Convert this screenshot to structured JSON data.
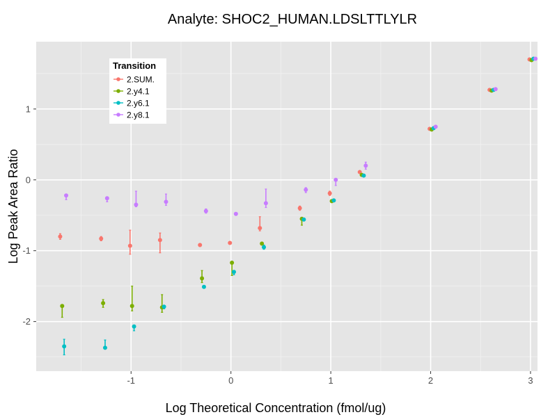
{
  "chart_data": {
    "type": "scatter",
    "title": "Analyte: SHOC2_HUMAN.LDSLTTLYLR",
    "xlabel": "Log Theoretical Concentration (fmol/ug)",
    "ylabel": "Log Peak Area Ratio",
    "xlim": [
      -1.95,
      3.07
    ],
    "ylim": [
      -2.7,
      1.95
    ],
    "x_ticks": [
      -1,
      0,
      1,
      2,
      3
    ],
    "x_tick_labels": [
      "-1",
      "0",
      "1",
      "2",
      "3"
    ],
    "y_ticks": [
      -2,
      -1,
      0,
      1
    ],
    "y_tick_labels": [
      "-2",
      "-1",
      "0",
      "1"
    ],
    "legend": {
      "title": "Transition",
      "position": "top-left"
    },
    "series": [
      {
        "name": "2.SUM.",
        "color": "#F8766D",
        "points": [
          {
            "x": -1.71,
            "y": -0.8,
            "lo": -0.84,
            "hi": -0.76
          },
          {
            "x": -1.3,
            "y": -0.83,
            "lo": -0.86,
            "hi": -0.8
          },
          {
            "x": -1.01,
            "y": -0.93,
            "lo": -1.05,
            "hi": -0.71
          },
          {
            "x": -0.71,
            "y": -0.85,
            "lo": -1.03,
            "hi": -0.75
          },
          {
            "x": -0.31,
            "y": -0.92,
            "lo": -0.94,
            "hi": -0.9
          },
          {
            "x": -0.01,
            "y": -0.89,
            "lo": -0.89,
            "hi": -0.89
          },
          {
            "x": 0.29,
            "y": -0.68,
            "lo": -0.72,
            "hi": -0.52
          },
          {
            "x": 0.69,
            "y": -0.4,
            "lo": -0.43,
            "hi": -0.37
          },
          {
            "x": 0.99,
            "y": -0.19,
            "lo": -0.22,
            "hi": -0.16
          },
          {
            "x": 1.29,
            "y": 0.11,
            "lo": 0.1,
            "hi": 0.12
          },
          {
            "x": 1.99,
            "y": 0.72,
            "lo": 0.72,
            "hi": 0.72
          },
          {
            "x": 2.59,
            "y": 1.27,
            "lo": 1.27,
            "hi": 1.27
          },
          {
            "x": 2.99,
            "y": 1.7,
            "lo": 1.7,
            "hi": 1.7
          }
        ]
      },
      {
        "name": "2.y4.1",
        "color": "#7CAE00",
        "points": [
          {
            "x": -1.69,
            "y": -1.78,
            "lo": -1.94,
            "hi": -1.77
          },
          {
            "x": -1.28,
            "y": -1.74,
            "lo": -1.8,
            "hi": -1.69
          },
          {
            "x": -0.99,
            "y": -1.78,
            "lo": -1.85,
            "hi": -1.5
          },
          {
            "x": -0.69,
            "y": -1.8,
            "lo": -1.87,
            "hi": -1.62
          },
          {
            "x": -0.29,
            "y": -1.39,
            "lo": -1.45,
            "hi": -1.28
          },
          {
            "x": 0.01,
            "y": -1.17,
            "lo": -1.35,
            "hi": -1.15
          },
          {
            "x": 0.31,
            "y": -0.9,
            "lo": -0.92,
            "hi": -0.88
          },
          {
            "x": 0.71,
            "y": -0.55,
            "lo": -0.64,
            "hi": -0.53
          },
          {
            "x": 1.01,
            "y": -0.3,
            "lo": -0.32,
            "hi": -0.28
          },
          {
            "x": 1.31,
            "y": 0.07,
            "lo": 0.06,
            "hi": 0.08
          },
          {
            "x": 2.01,
            "y": 0.71,
            "lo": 0.71,
            "hi": 0.71
          },
          {
            "x": 2.61,
            "y": 1.26,
            "lo": 1.26,
            "hi": 1.26
          },
          {
            "x": 3.01,
            "y": 1.69,
            "lo": 1.69,
            "hi": 1.69
          }
        ]
      },
      {
        "name": "2.y6.1",
        "color": "#00BFC4",
        "points": [
          {
            "x": -1.67,
            "y": -2.35,
            "lo": -2.47,
            "hi": -2.25
          },
          {
            "x": -1.26,
            "y": -2.37,
            "lo": -2.37,
            "hi": -2.26
          },
          {
            "x": -0.97,
            "y": -2.07,
            "lo": -2.13,
            "hi": -2.05
          },
          {
            "x": -0.67,
            "y": -1.79,
            "lo": -1.82,
            "hi": -1.78
          },
          {
            "x": -0.27,
            "y": -1.51,
            "lo": -1.52,
            "hi": -1.5
          },
          {
            "x": 0.03,
            "y": -1.3,
            "lo": -1.34,
            "hi": -1.28
          },
          {
            "x": 0.33,
            "y": -0.95,
            "lo": -0.98,
            "hi": -0.92
          },
          {
            "x": 0.73,
            "y": -0.56,
            "lo": -0.58,
            "hi": -0.54
          },
          {
            "x": 1.03,
            "y": -0.29,
            "lo": -0.3,
            "hi": -0.28
          },
          {
            "x": 1.33,
            "y": 0.06,
            "lo": 0.05,
            "hi": 0.07
          },
          {
            "x": 2.03,
            "y": 0.73,
            "lo": 0.73,
            "hi": 0.73
          },
          {
            "x": 2.63,
            "y": 1.27,
            "lo": 1.27,
            "hi": 1.27
          },
          {
            "x": 3.03,
            "y": 1.71,
            "lo": 1.71,
            "hi": 1.71
          }
        ]
      },
      {
        "name": "2.y8.1",
        "color": "#C77CFF",
        "points": [
          {
            "x": -1.65,
            "y": -0.22,
            "lo": -0.28,
            "hi": -0.21
          },
          {
            "x": -1.24,
            "y": -0.26,
            "lo": -0.31,
            "hi": -0.24
          },
          {
            "x": -0.95,
            "y": -0.35,
            "lo": -0.38,
            "hi": -0.16
          },
          {
            "x": -0.65,
            "y": -0.31,
            "lo": -0.36,
            "hi": -0.2
          },
          {
            "x": -0.25,
            "y": -0.44,
            "lo": -0.47,
            "hi": -0.41
          },
          {
            "x": 0.05,
            "y": -0.48,
            "lo": -0.48,
            "hi": -0.48
          },
          {
            "x": 0.35,
            "y": -0.33,
            "lo": -0.39,
            "hi": -0.13
          },
          {
            "x": 0.75,
            "y": -0.14,
            "lo": -0.18,
            "hi": -0.11
          },
          {
            "x": 1.05,
            "y": 0.0,
            "lo": -0.08,
            "hi": 0.02
          },
          {
            "x": 1.35,
            "y": 0.2,
            "lo": 0.15,
            "hi": 0.25
          },
          {
            "x": 2.05,
            "y": 0.75,
            "lo": 0.75,
            "hi": 0.75
          },
          {
            "x": 2.65,
            "y": 1.28,
            "lo": 1.28,
            "hi": 1.28
          },
          {
            "x": 3.05,
            "y": 1.71,
            "lo": 1.71,
            "hi": 1.71
          }
        ]
      }
    ]
  }
}
